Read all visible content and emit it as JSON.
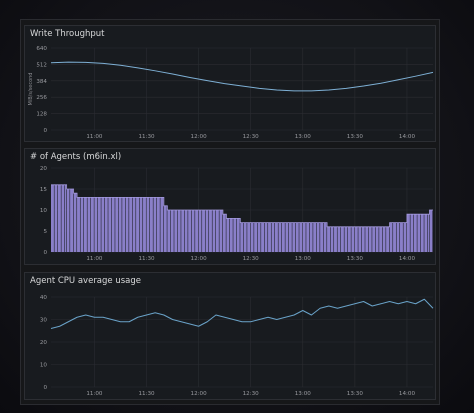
{
  "chart_data": [
    {
      "type": "line",
      "title": "Write Throughput",
      "ylabel": "MiB/s/second",
      "ylim": [
        0,
        640
      ],
      "yticks": [
        0,
        128,
        256,
        384,
        512,
        640
      ],
      "xticks": [
        "11:00",
        "11:30",
        "12:00",
        "12:30",
        "13:00",
        "13:30",
        "14:00"
      ],
      "xlim": [
        "10:35",
        "14:15"
      ],
      "grid": true,
      "color": "#7eb0d5",
      "series": [
        {
          "x": [
            "10:35",
            "10:45",
            "10:55",
            "11:05",
            "11:15",
            "11:25",
            "11:35",
            "11:45",
            "11:55",
            "12:05",
            "12:15",
            "12:25",
            "12:35",
            "12:45",
            "12:55",
            "13:05",
            "13:15",
            "13:25",
            "13:35",
            "13:45",
            "13:55",
            "14:05",
            "14:15"
          ],
          "values": [
            525,
            530,
            528,
            520,
            505,
            485,
            462,
            437,
            410,
            385,
            362,
            343,
            325,
            312,
            305,
            305,
            312,
            325,
            343,
            365,
            392,
            420,
            450
          ]
        }
      ]
    },
    {
      "type": "bar",
      "title": "# of Agents (m6in.xl)",
      "ylim": [
        0,
        20
      ],
      "yticks": [
        0,
        5,
        10,
        15,
        20
      ],
      "xticks": [
        "11:00",
        "11:30",
        "12:00",
        "12:30",
        "13:00",
        "13:30",
        "14:00"
      ],
      "xlim": [
        "10:35",
        "14:15"
      ],
      "grid": true,
      "color": "#8a7fc9",
      "segments": [
        {
          "from": "10:35",
          "to": "10:44",
          "value": 16
        },
        {
          "from": "10:44",
          "to": "10:48",
          "value": 15
        },
        {
          "from": "10:48",
          "to": "10:50",
          "value": 14
        },
        {
          "from": "10:50",
          "to": "11:40",
          "value": 13
        },
        {
          "from": "11:40",
          "to": "11:42",
          "value": 11
        },
        {
          "from": "11:42",
          "to": "12:14",
          "value": 10
        },
        {
          "from": "12:14",
          "to": "12:16",
          "value": 9
        },
        {
          "from": "12:16",
          "to": "12:24",
          "value": 8
        },
        {
          "from": "12:24",
          "to": "13:14",
          "value": 7
        },
        {
          "from": "13:14",
          "to": "13:50",
          "value": 6
        },
        {
          "from": "13:50",
          "to": "14:00",
          "value": 7
        },
        {
          "from": "14:00",
          "to": "14:13",
          "value": 9
        },
        {
          "from": "14:13",
          "to": "14:15",
          "value": 10
        }
      ]
    },
    {
      "type": "line",
      "title": "Agent CPU average usage",
      "ylim": [
        0,
        40
      ],
      "yticks": [
        0,
        10,
        20,
        30,
        40
      ],
      "xticks": [
        "11:00",
        "11:30",
        "12:00",
        "12:30",
        "13:00",
        "13:30",
        "14:00"
      ],
      "xlim": [
        "10:35",
        "14:15"
      ],
      "grid": true,
      "color": "#6aa3c9",
      "series": [
        {
          "x": [
            "10:35",
            "10:40",
            "10:45",
            "10:50",
            "10:55",
            "11:00",
            "11:05",
            "11:10",
            "11:15",
            "11:20",
            "11:25",
            "11:30",
            "11:35",
            "11:40",
            "11:45",
            "11:50",
            "11:55",
            "12:00",
            "12:05",
            "12:10",
            "12:15",
            "12:20",
            "12:25",
            "12:30",
            "12:35",
            "12:40",
            "12:45",
            "12:50",
            "12:55",
            "13:00",
            "13:05",
            "13:10",
            "13:15",
            "13:20",
            "13:25",
            "13:30",
            "13:35",
            "13:40",
            "13:45",
            "13:50",
            "13:55",
            "14:00",
            "14:05",
            "14:10",
            "14:15"
          ],
          "values": [
            26,
            27,
            29,
            31,
            32,
            31,
            31,
            30,
            29,
            29,
            31,
            32,
            33,
            32,
            30,
            29,
            28,
            27,
            29,
            32,
            31,
            30,
            29,
            29,
            30,
            31,
            30,
            31,
            32,
            34,
            32,
            35,
            36,
            35,
            36,
            37,
            38,
            36,
            37,
            38,
            37,
            38,
            37,
            39,
            35
          ]
        }
      ]
    }
  ]
}
